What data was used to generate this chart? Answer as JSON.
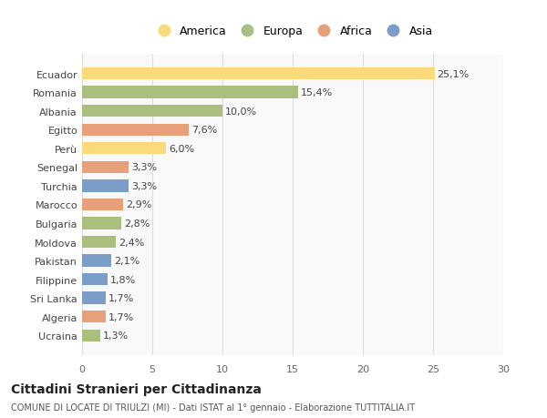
{
  "countries": [
    "Ucraina",
    "Algeria",
    "Sri Lanka",
    "Filippine",
    "Pakistan",
    "Moldova",
    "Bulgaria",
    "Marocco",
    "Turchia",
    "Senegal",
    "Perù",
    "Egitto",
    "Albania",
    "Romania",
    "Ecuador"
  ],
  "values": [
    1.3,
    1.7,
    1.7,
    1.8,
    2.1,
    2.4,
    2.8,
    2.9,
    3.3,
    3.3,
    6.0,
    7.6,
    10.0,
    15.4,
    25.1
  ],
  "labels": [
    "1,3%",
    "1,7%",
    "1,7%",
    "1,8%",
    "2,1%",
    "2,4%",
    "2,8%",
    "2,9%",
    "3,3%",
    "3,3%",
    "6,0%",
    "7,6%",
    "10,0%",
    "15,4%",
    "25,1%"
  ],
  "continents": [
    "Europa",
    "Africa",
    "Asia",
    "Asia",
    "Asia",
    "Europa",
    "Europa",
    "Africa",
    "Asia",
    "Africa",
    "America",
    "Africa",
    "Europa",
    "Europa",
    "America"
  ],
  "colors": {
    "America": "#FADA7A",
    "Europa": "#AABF7E",
    "Africa": "#E8A07A",
    "Asia": "#7A9EC8"
  },
  "legend_order": [
    "America",
    "Europa",
    "Africa",
    "Asia"
  ],
  "xlim": [
    0,
    30
  ],
  "xticks": [
    0,
    5,
    10,
    15,
    20,
    25,
    30
  ],
  "title1": "Cittadini Stranieri per Cittadinanza",
  "title2": "COMUNE DI LOCATE DI TRIULZI (MI) - Dati ISTAT al 1° gennaio - Elaborazione TUTTITALIA.IT",
  "background_color": "#ffffff",
  "plot_background": "#f9f9f9"
}
